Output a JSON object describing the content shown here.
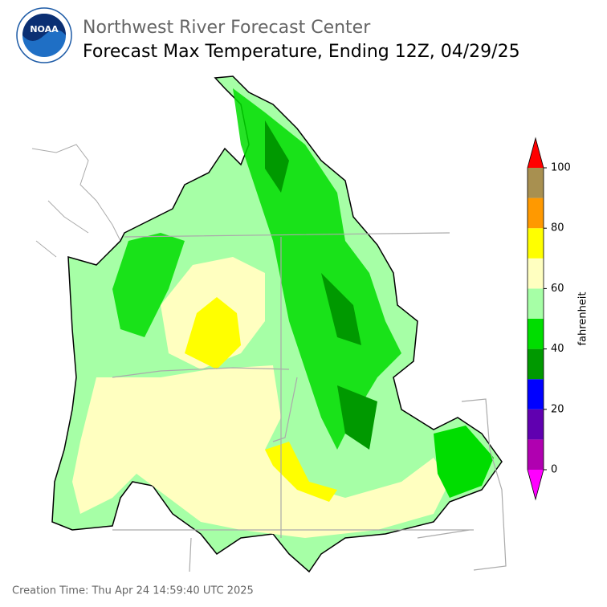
{
  "header": {
    "logo": "NOAA",
    "agency": "Northwest River Forecast Center",
    "title": "Forecast Max Temperature, Ending 12Z, 04/29/25"
  },
  "colorbar": {
    "label": "fahrenheit",
    "lim": [
      0,
      100
    ],
    "ticks": [
      0,
      20,
      40,
      60,
      80,
      100
    ],
    "bounds": [
      0,
      10,
      20,
      30,
      40,
      50,
      60,
      70,
      80,
      90,
      100
    ],
    "colors": [
      "#b000b0",
      "#6000b0",
      "#0000ff",
      "#009900",
      "#00dd00",
      "#a6ffa6",
      "#ffffc0",
      "#ffff00",
      "#ff9900",
      "#a89050"
    ],
    "under_color": "#ff00ff",
    "over_color": "#ff0000"
  },
  "footer": "Creation Time: Thu Apr 24 14:59:40 UTC 2025"
}
